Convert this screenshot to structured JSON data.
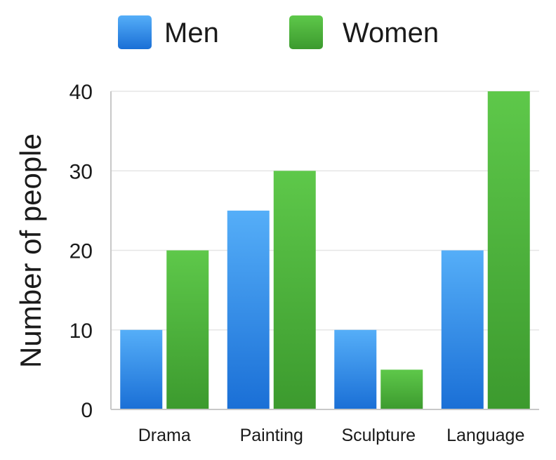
{
  "chart_data": {
    "type": "bar",
    "title": "",
    "xlabel": "",
    "ylabel": "Number of people",
    "categories": [
      "Drama",
      "Painting",
      "Sculpture",
      "Language"
    ],
    "series": [
      {
        "name": "Men",
        "values": [
          10,
          25,
          10,
          20
        ],
        "color": "#2f86e4"
      },
      {
        "name": "Women",
        "values": [
          20,
          30,
          5,
          40
        ],
        "color": "#4aae3a"
      }
    ],
    "ylim": [
      0,
      40
    ],
    "yticks": [
      0,
      10,
      20,
      30,
      40
    ],
    "grid": true,
    "legend": "top"
  }
}
